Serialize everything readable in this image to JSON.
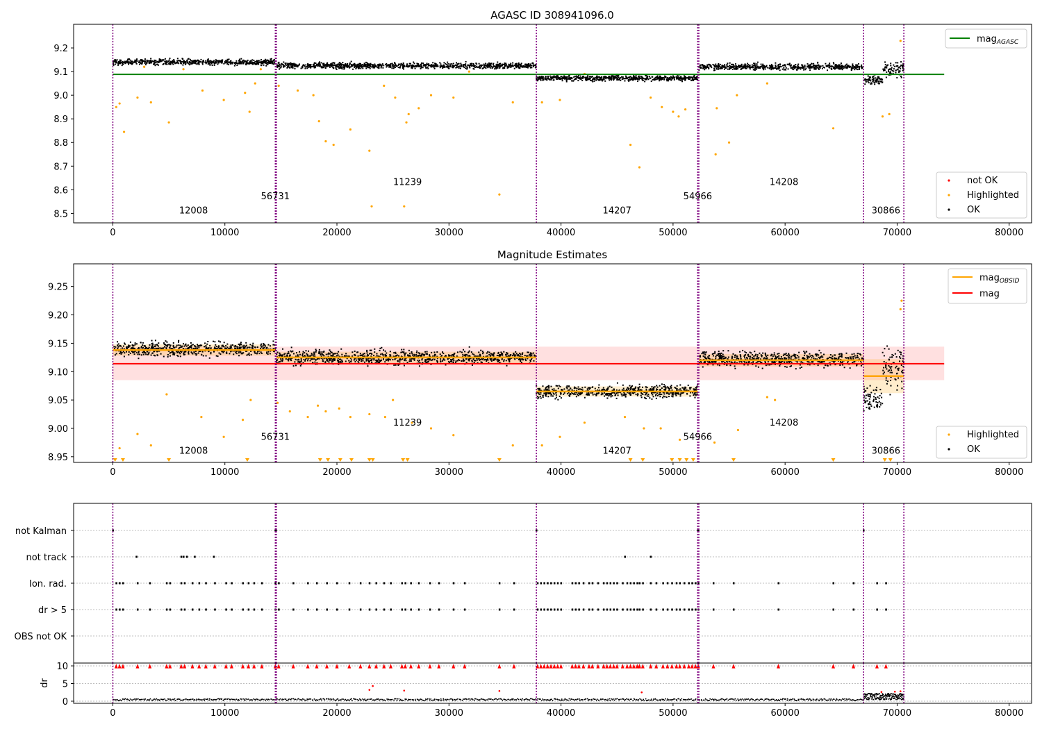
{
  "chart_data": [
    {
      "type": "scatter",
      "title": "AGASC ID 308941096.0",
      "xlim": [
        -3500,
        82000
      ],
      "ylim": [
        8.46,
        9.3
      ],
      "x_ticks": [
        0,
        10000,
        20000,
        30000,
        40000,
        50000,
        60000,
        70000,
        80000
      ],
      "y_ticks": [
        8.5,
        8.6,
        8.7,
        8.8,
        8.9,
        9.0,
        9.1,
        9.2
      ],
      "obs_boundaries": [
        0,
        14500,
        14600,
        37800,
        52200,
        52300,
        67000,
        70600
      ],
      "obs_labels": [
        {
          "text": "12008",
          "x": 7200,
          "y": 8.5
        },
        {
          "text": "56731",
          "x": 14500,
          "y": 8.56
        },
        {
          "text": "11239",
          "x": 26300,
          "y": 8.62
        },
        {
          "text": "14207",
          "x": 45000,
          "y": 8.5
        },
        {
          "text": "54966",
          "x": 52200,
          "y": 8.56
        },
        {
          "text": "14208",
          "x": 59900,
          "y": 8.62
        },
        {
          "text": "30866",
          "x": 69000,
          "y": 8.5
        }
      ],
      "mag_agasc": 9.088,
      "mag_agasc_range": [
        0,
        74200
      ],
      "segments": [
        {
          "x0": 0,
          "x1": 14500,
          "mean": 9.14,
          "spread": 0.012
        },
        {
          "x0": 14600,
          "x1": 37800,
          "mean": 9.125,
          "spread": 0.012
        },
        {
          "x0": 37800,
          "x1": 52200,
          "mean": 9.072,
          "spread": 0.011
        },
        {
          "x0": 52300,
          "x1": 67000,
          "mean": 9.12,
          "spread": 0.013
        },
        {
          "x0": 67000,
          "x1": 68700,
          "mean": 9.065,
          "spread": 0.02
        },
        {
          "x0": 68700,
          "x1": 70600,
          "mean": 9.11,
          "spread": 0.03
        }
      ],
      "highlighted_points": [
        [
          300,
          8.95
        ],
        [
          600,
          8.965
        ],
        [
          1000,
          8.845
        ],
        [
          2200,
          8.99
        ],
        [
          3400,
          8.97
        ],
        [
          5000,
          8.885
        ],
        [
          8000,
          9.02
        ],
        [
          9900,
          8.98
        ],
        [
          11800,
          9.01
        ],
        [
          12200,
          8.93
        ],
        [
          12700,
          9.05
        ],
        [
          14800,
          9.04
        ],
        [
          16500,
          9.02
        ],
        [
          17900,
          9.0
        ],
        [
          18400,
          8.89
        ],
        [
          19000,
          8.805
        ],
        [
          19700,
          8.79
        ],
        [
          21200,
          8.855
        ],
        [
          22900,
          8.765
        ],
        [
          23100,
          8.53
        ],
        [
          24200,
          9.04
        ],
        [
          25200,
          8.99
        ],
        [
          26000,
          8.53
        ],
        [
          26200,
          8.885
        ],
        [
          26400,
          8.92
        ],
        [
          27300,
          8.945
        ],
        [
          28400,
          9.0
        ],
        [
          30400,
          8.99
        ],
        [
          34500,
          8.58
        ],
        [
          35700,
          8.97
        ],
        [
          38300,
          8.97
        ],
        [
          39900,
          8.98
        ],
        [
          46200,
          8.79
        ],
        [
          47000,
          8.695
        ],
        [
          48000,
          8.99
        ],
        [
          49000,
          8.95
        ],
        [
          50000,
          8.93
        ],
        [
          50500,
          8.91
        ],
        [
          51100,
          8.94
        ],
        [
          53800,
          8.75
        ],
        [
          53900,
          8.945
        ],
        [
          55000,
          8.8
        ],
        [
          55700,
          9.0
        ],
        [
          64300,
          8.86
        ],
        [
          68700,
          8.91
        ],
        [
          69300,
          8.92
        ],
        [
          70300,
          9.23
        ],
        [
          58400,
          9.05
        ],
        [
          2800,
          9.12
        ],
        [
          6300,
          9.11
        ],
        [
          13200,
          9.11
        ],
        [
          42100,
          9.09
        ],
        [
          31800,
          9.1
        ]
      ],
      "legend": {
        "position": "top-right",
        "entries": [
          "mag_AGASC"
        ]
      },
      "legend2": {
        "position": "bottom-right",
        "entries": [
          "not OK",
          "Highlighted",
          "OK"
        ]
      },
      "colors": {
        "ok": "#000000",
        "highlighted": "#ffa500",
        "not_ok": "#ff0000",
        "agasc": "#008000",
        "boundary": "#800080"
      }
    },
    {
      "type": "scatter",
      "title": "Magnitude Estimates",
      "xlim": [
        -3500,
        82000
      ],
      "ylim": [
        8.94,
        9.29
      ],
      "x_ticks": [
        0,
        10000,
        20000,
        30000,
        40000,
        50000,
        60000,
        70000,
        80000
      ],
      "y_ticks": [
        8.95,
        9.0,
        9.05,
        9.1,
        9.15,
        9.2,
        9.25
      ],
      "obs_boundaries": [
        0,
        14500,
        14600,
        37800,
        52200,
        52300,
        67000,
        70600
      ],
      "obs_labels": [
        {
          "text": "12008",
          "x": 7200,
          "y": 8.955
        },
        {
          "text": "56731",
          "x": 14500,
          "y": 8.98
        },
        {
          "text": "11239",
          "x": 26300,
          "y": 9.005
        },
        {
          "text": "14207",
          "x": 45000,
          "y": 8.955
        },
        {
          "text": "54966",
          "x": 52200,
          "y": 8.98
        },
        {
          "text": "14208",
          "x": 59900,
          "y": 9.005
        },
        {
          "text": "30866",
          "x": 69000,
          "y": 8.955
        }
      ],
      "mag": 9.114,
      "mag_band": [
        9.085,
        9.144
      ],
      "mag_range": [
        0,
        74200
      ],
      "segments": [
        {
          "x0": 0,
          "x1": 14500,
          "mean": 9.14,
          "spread": 0.012,
          "obs_mag": 9.138,
          "obs_err": 0.01
        },
        {
          "x0": 14600,
          "x1": 37800,
          "mean": 9.125,
          "spread": 0.012,
          "obs_mag": 9.125,
          "obs_err": 0.01
        },
        {
          "x0": 37800,
          "x1": 52200,
          "mean": 9.065,
          "spread": 0.011,
          "obs_mag": 9.065,
          "obs_err": 0.009
        },
        {
          "x0": 52300,
          "x1": 67000,
          "mean": 9.122,
          "spread": 0.013,
          "obs_mag": 9.12,
          "obs_err": 0.011
        },
        {
          "x0": 67000,
          "x1": 68700,
          "mean": 9.055,
          "spread": 0.02,
          "obs_mag": 9.092,
          "obs_err": 0.03
        },
        {
          "x0": 68700,
          "x1": 70600,
          "mean": 9.11,
          "spread": 0.035,
          "obs_mag": 9.092,
          "obs_err": 0.03
        }
      ],
      "highlighted_points": [
        [
          600,
          8.965
        ],
        [
          2200,
          8.99
        ],
        [
          3400,
          8.97
        ],
        [
          4800,
          9.06
        ],
        [
          7900,
          9.02
        ],
        [
          9900,
          8.985
        ],
        [
          11600,
          9.015
        ],
        [
          12300,
          9.05
        ],
        [
          14700,
          9.045
        ],
        [
          15800,
          9.03
        ],
        [
          17400,
          9.02
        ],
        [
          18300,
          9.04
        ],
        [
          19000,
          9.03
        ],
        [
          20200,
          9.035
        ],
        [
          21200,
          9.02
        ],
        [
          22900,
          9.025
        ],
        [
          24300,
          9.02
        ],
        [
          25000,
          9.05
        ],
        [
          26700,
          9.01
        ],
        [
          28400,
          9.0
        ],
        [
          30400,
          8.988
        ],
        [
          35700,
          8.97
        ],
        [
          38300,
          8.97
        ],
        [
          39900,
          8.985
        ],
        [
          42100,
          9.01
        ],
        [
          45700,
          9.02
        ],
        [
          47400,
          9.0
        ],
        [
          48900,
          9.0
        ],
        [
          50600,
          8.98
        ],
        [
          53700,
          8.975
        ],
        [
          55800,
          8.997
        ],
        [
          58400,
          9.055
        ],
        [
          59100,
          9.05
        ],
        [
          70300,
          9.21
        ],
        [
          70400,
          9.225
        ]
      ],
      "floor_markers": [
        200,
        900,
        5000,
        12000,
        18500,
        19200,
        20300,
        21300,
        22900,
        23200,
        25900,
        26300,
        34500,
        46200,
        47300,
        49900,
        50600,
        51200,
        51800,
        55400,
        64300,
        68900,
        69400
      ],
      "legend": {
        "position": "top-right",
        "entries": [
          "mag_OBSID",
          "mag"
        ]
      },
      "legend2": {
        "position": "bottom-right",
        "entries": [
          "Highlighted",
          "OK"
        ]
      },
      "colors": {
        "ok": "#000000",
        "highlighted": "#ffa500",
        "mag": "#ff0000",
        "obs_mag": "#ffa500",
        "boundary": "#800080"
      }
    },
    {
      "type": "scatter",
      "title": "",
      "xlim": [
        -3500,
        82000
      ],
      "categories": [
        "not Kalman",
        "not track",
        "Ion. rad.",
        "dr > 5",
        "OBS not OK"
      ],
      "not_kalman_x": [
        0,
        14500,
        14550,
        37800,
        52200,
        52250,
        67000
      ],
      "not_track_x": [
        2100,
        6100,
        6300,
        6600,
        7300,
        9000,
        45700,
        48000
      ],
      "ion_rad_x": [
        300,
        600,
        900,
        2200,
        3300,
        4800,
        5100,
        6100,
        6400,
        7100,
        7700,
        8300,
        9100,
        10100,
        10600,
        11600,
        12100,
        12600,
        13300,
        14500,
        14800,
        16100,
        17400,
        18200,
        19100,
        20000,
        21100,
        22100,
        22900,
        23500,
        24200,
        24800,
        25800,
        26100,
        26600,
        27300,
        28300,
        29100,
        30400,
        31400,
        34500,
        35800,
        37900,
        38200,
        38500,
        38800,
        39100,
        39400,
        39700,
        40000,
        41000,
        41300,
        41600,
        42000,
        42500,
        42800,
        43300,
        43800,
        44100,
        44400,
        44700,
        45000,
        45500,
        45900,
        46200,
        46500,
        46800,
        47000,
        47300,
        48000,
        48500,
        49100,
        49500,
        49900,
        50300,
        50600,
        51000,
        51400,
        51700,
        52000,
        52250,
        53600,
        55400,
        59400,
        64300,
        66100,
        68200,
        69000
      ],
      "dr5_x": [
        300,
        600,
        900,
        2200,
        3300,
        4800,
        5100,
        6100,
        6400,
        7100,
        7700,
        8300,
        9100,
        10100,
        10600,
        11600,
        12100,
        12600,
        13300,
        14500,
        14800,
        16100,
        17400,
        18200,
        19100,
        20000,
        21100,
        22100,
        22900,
        23500,
        24200,
        24800,
        25800,
        26100,
        26600,
        27300,
        28300,
        29100,
        30400,
        31400,
        34500,
        35800,
        37900,
        38200,
        38500,
        38800,
        39100,
        39400,
        39700,
        40000,
        41000,
        41300,
        41600,
        42000,
        42500,
        42800,
        43300,
        43800,
        44100,
        44400,
        44700,
        45000,
        45500,
        45900,
        46200,
        46500,
        46800,
        47000,
        47300,
        48000,
        48500,
        49100,
        49500,
        49900,
        50300,
        50600,
        51000,
        51400,
        51700,
        52000,
        52250,
        53600,
        55400,
        59400,
        64300,
        66100,
        68200,
        69000
      ],
      "obs_boundaries": [
        0,
        14500,
        14600,
        37800,
        52200,
        52300,
        67000,
        70600
      ]
    },
    {
      "type": "scatter",
      "ylabel": "dr",
      "xlim": [
        -3500,
        82000
      ],
      "ylim": [
        -0.6,
        10.8
      ],
      "x_ticks": [
        0,
        10000,
        20000,
        30000,
        40000,
        50000,
        60000,
        70000,
        80000
      ],
      "y_ticks": [
        0,
        5,
        10
      ],
      "dr_high_x": [
        300,
        600,
        900,
        2200,
        3300,
        4800,
        5100,
        6100,
        6400,
        7100,
        7700,
        8300,
        9100,
        10100,
        10600,
        11600,
        12100,
        12600,
        13300,
        14500,
        14800,
        16100,
        17400,
        18200,
        19100,
        20000,
        21100,
        22100,
        22900,
        23500,
        24200,
        24800,
        25800,
        26100,
        26600,
        27300,
        28300,
        29100,
        30400,
        31400,
        34500,
        35800,
        37900,
        38200,
        38500,
        38800,
        39100,
        39400,
        39700,
        40000,
        41000,
        41300,
        41600,
        42000,
        42500,
        42800,
        43300,
        43800,
        44100,
        44400,
        44700,
        45000,
        45500,
        45900,
        46200,
        46500,
        46800,
        47000,
        47300,
        48000,
        48500,
        49100,
        49500,
        49900,
        50300,
        50600,
        51000,
        51400,
        51700,
        52000,
        52250,
        53600,
        55400,
        59400,
        64300,
        66100,
        68200,
        69000
      ],
      "dr_mid": [
        [
          22900,
          3.2
        ],
        [
          23200,
          4.3
        ],
        [
          26000,
          3.0
        ],
        [
          34500,
          2.9
        ],
        [
          47200,
          2.5
        ],
        [
          68600,
          2.6
        ],
        [
          69800,
          2.7
        ],
        [
          70300,
          2.8
        ]
      ],
      "obs_boundaries": [
        0,
        14500,
        14600,
        37800,
        52200,
        52300,
        67000,
        70600
      ]
    }
  ]
}
